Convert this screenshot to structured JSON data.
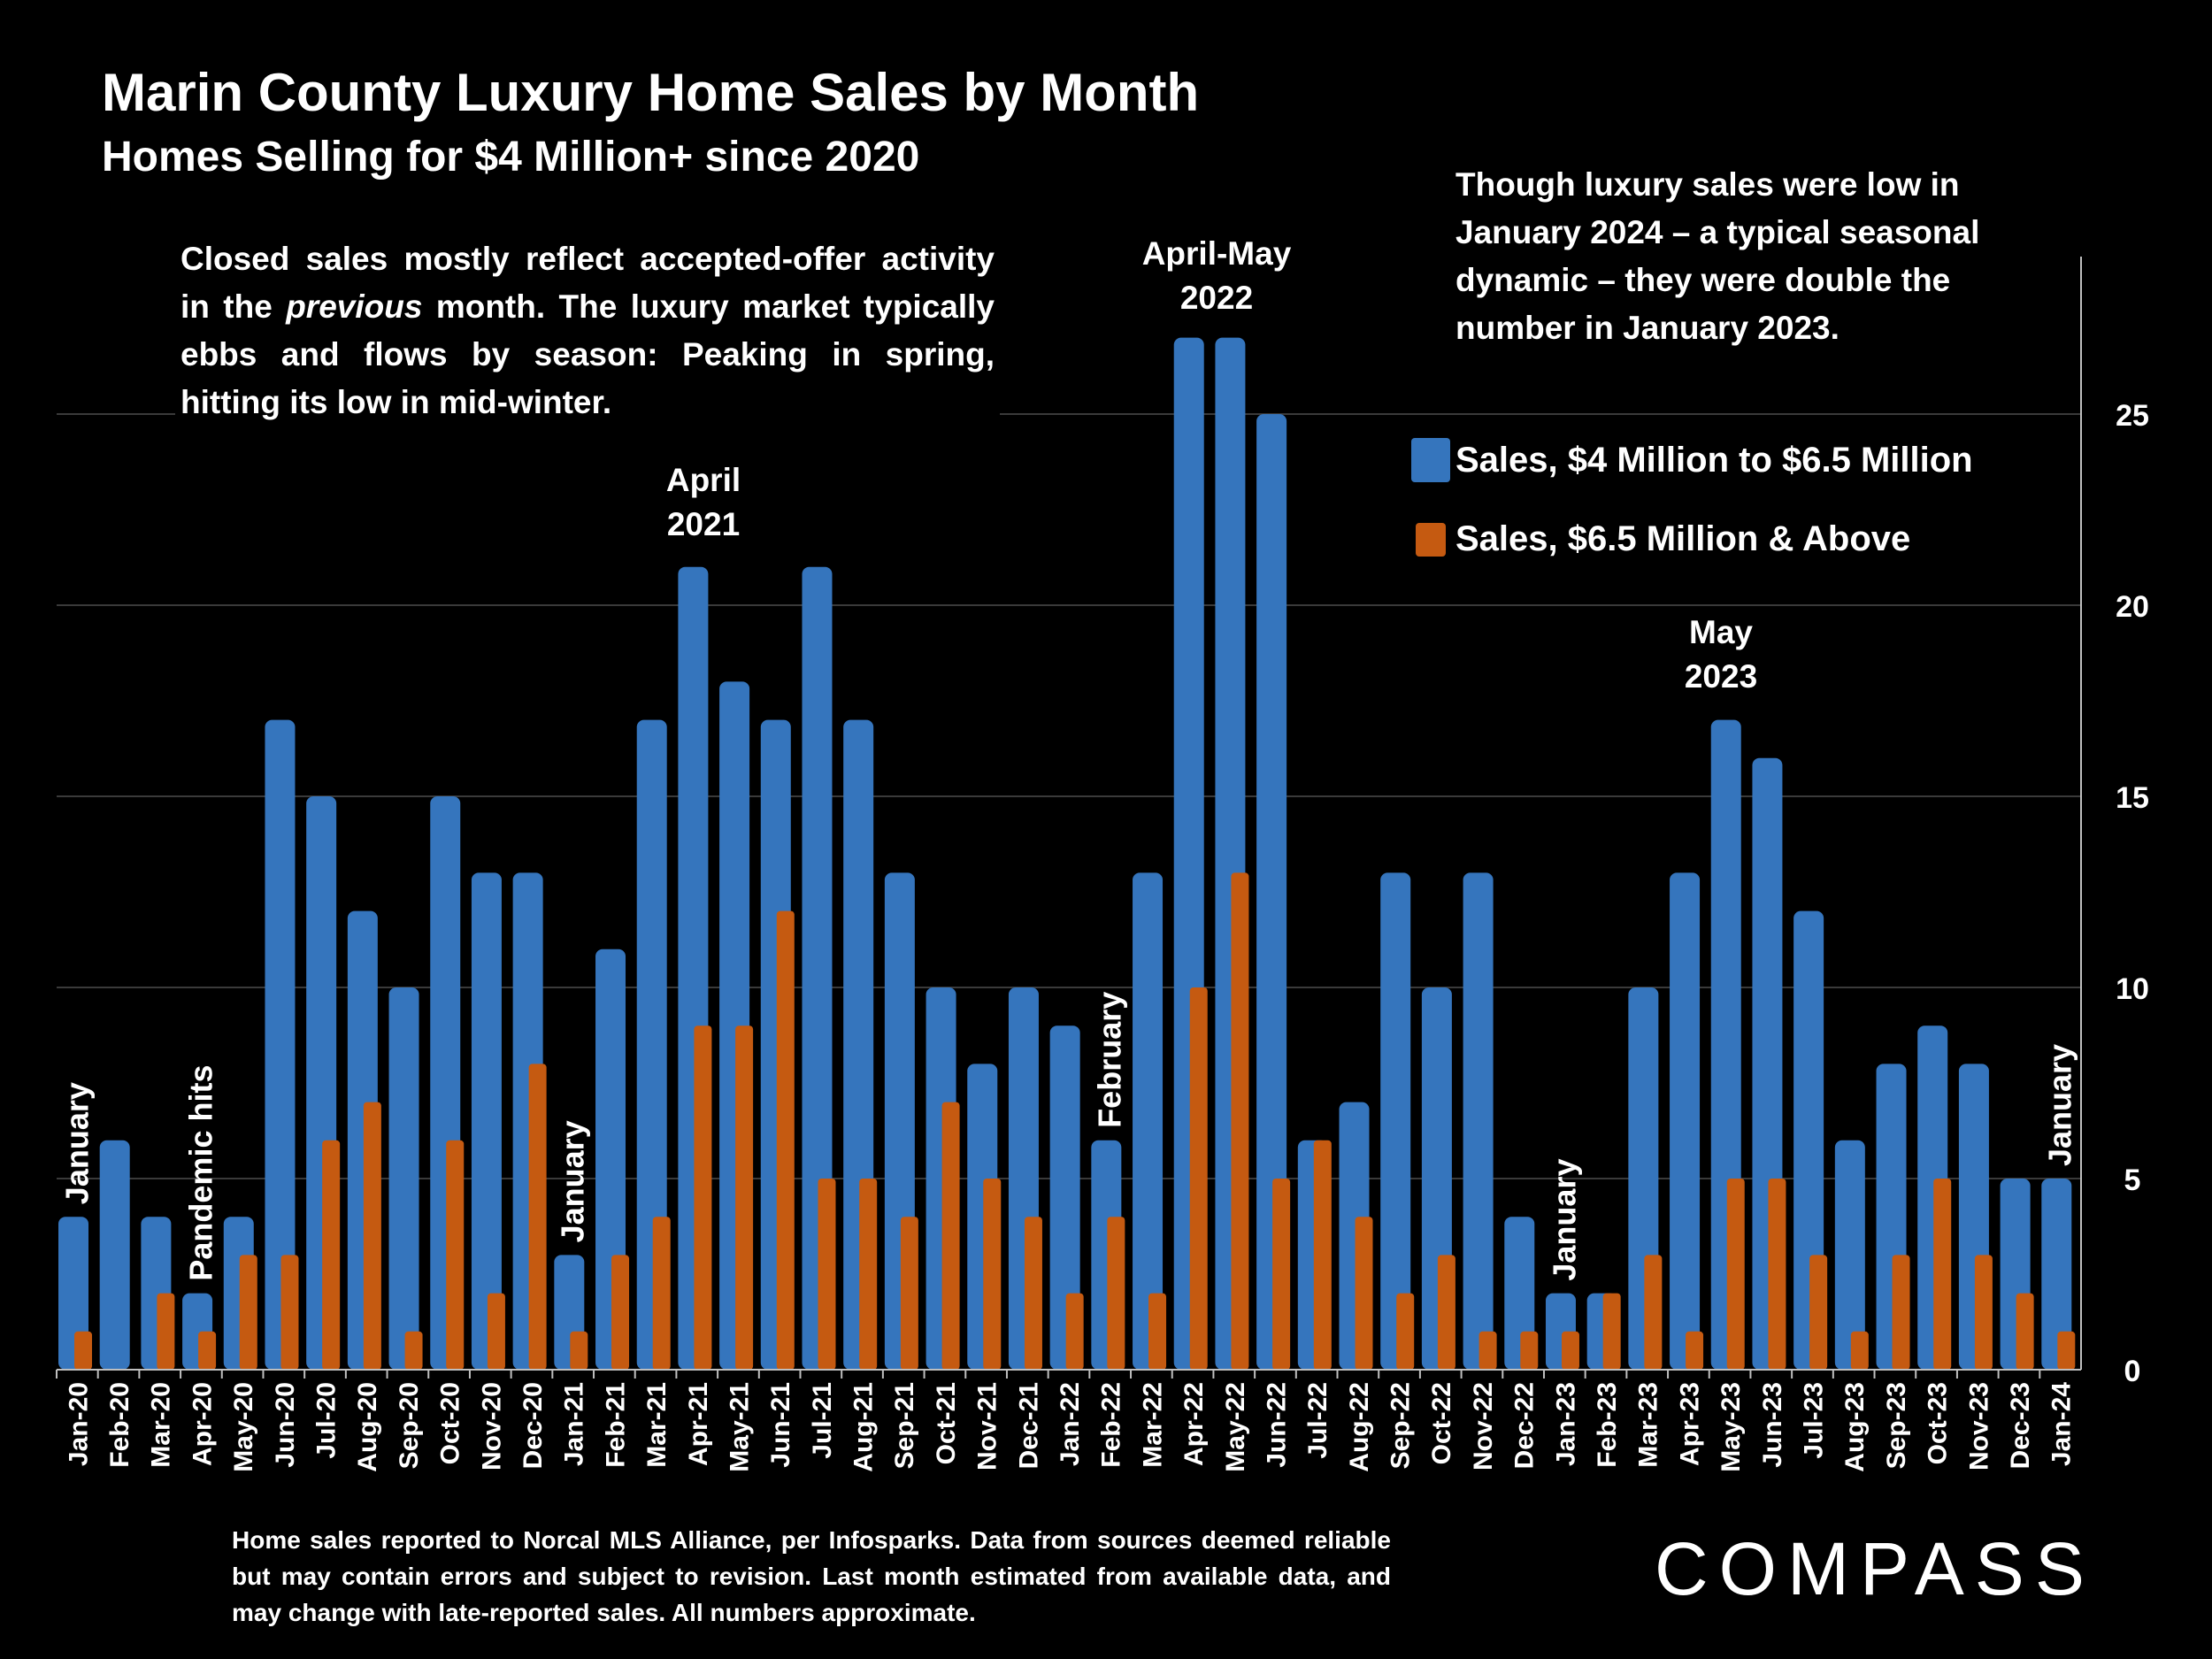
{
  "header": {
    "title": "Marin County Luxury Home Sales by Month",
    "subtitle": "Homes Selling for $4 Million+ since 2020"
  },
  "notes": {
    "left_pre": "Closed sales mostly reflect accepted-offer activity in the ",
    "left_emph": "previous",
    "left_post": " month. The luxury market typically ebbs and flows by season: Peaking in spring, hitting its low in mid-winter.",
    "right": "Though luxury sales were low in January 2024 – a typical seasonal dynamic – they were double the number in January 2023."
  },
  "callouts": {
    "april_2021": [
      "April",
      "2021"
    ],
    "april_may_2022": [
      "April-May",
      "2022"
    ],
    "may_2023": [
      "May",
      "2023"
    ],
    "vertical": [
      {
        "text": "January",
        "at": "Jan-20",
        "value": 4
      },
      {
        "text": "Pandemic hits",
        "at": "Apr-20",
        "value": 2
      },
      {
        "text": "January",
        "at": "Jan-21",
        "value": 3
      },
      {
        "text": "February",
        "at": "Feb-22",
        "value": 6
      },
      {
        "text": "January",
        "at": "Jan-23",
        "value": 2
      },
      {
        "text": "January",
        "at": "Jan-24",
        "value": 5
      }
    ]
  },
  "footnote": "Home sales reported to Norcal MLS Alliance, per Infosparks. Data from sources deemed reliable but may contain errors and subject to revision.  Last month estimated from available data, and may change with late-reported sales. All numbers approximate.",
  "brand": {
    "logo_text": "COMPASS"
  },
  "colors": {
    "blue": "#3575bd",
    "orange": "#c55a11",
    "background": "#000000",
    "grid": "#3a3a3a"
  },
  "chart_data": {
    "type": "bar",
    "title": "Marin County Luxury Home Sales by Month",
    "subtitle": "Homes Selling for $4 Million+ since 2020",
    "ylim": [
      0,
      28
    ],
    "yticks": [
      0,
      5,
      10,
      15,
      20,
      25
    ],
    "yaxis_side": "right",
    "grid": true,
    "legend_position": "upper-right",
    "categories": [
      "Jan-20",
      "Feb-20",
      "Mar-20",
      "Apr-20",
      "May-20",
      "Jun-20",
      "Jul-20",
      "Aug-20",
      "Sep-20",
      "Oct-20",
      "Nov-20",
      "Dec-20",
      "Jan-21",
      "Feb-21",
      "Mar-21",
      "Apr-21",
      "May-21",
      "Jun-21",
      "Jul-21",
      "Aug-21",
      "Sep-21",
      "Oct-21",
      "Nov-21",
      "Dec-21",
      "Jan-22",
      "Feb-22",
      "Mar-22",
      "Apr-22",
      "May-22",
      "Jun-22",
      "Jul-22",
      "Aug-22",
      "Sep-22",
      "Oct-22",
      "Nov-22",
      "Dec-22",
      "Jan-23",
      "Feb-23",
      "Mar-23",
      "Apr-23",
      "May-23",
      "Jun-23",
      "Jul-23",
      "Aug-23",
      "Sep-23",
      "Oct-23",
      "Nov-23",
      "Dec-23",
      "Jan-24"
    ],
    "series": [
      {
        "name": "Sales, $4 Million to $6.5 Million",
        "color": "#3575bd",
        "values": [
          4,
          6,
          4,
          2,
          4,
          17,
          15,
          12,
          10,
          15,
          13,
          13,
          3,
          11,
          17,
          21,
          18,
          17,
          21,
          17,
          13,
          10,
          8,
          10,
          9,
          6,
          13,
          27,
          27,
          25,
          6,
          7,
          13,
          10,
          13,
          4,
          2,
          2,
          10,
          13,
          17,
          16,
          12,
          6,
          8,
          9,
          8,
          5,
          5
        ]
      },
      {
        "name": "Sales, $6.5 Million & Above",
        "color": "#c55a11",
        "values": [
          1,
          0,
          2,
          1,
          3,
          3,
          6,
          7,
          1,
          6,
          2,
          8,
          1,
          3,
          4,
          9,
          9,
          12,
          5,
          5,
          4,
          7,
          5,
          4,
          2,
          4,
          2,
          10,
          13,
          5,
          6,
          4,
          2,
          3,
          1,
          1,
          1,
          2,
          3,
          1,
          5,
          5,
          3,
          1,
          3,
          5,
          3,
          2,
          1
        ]
      }
    ]
  }
}
